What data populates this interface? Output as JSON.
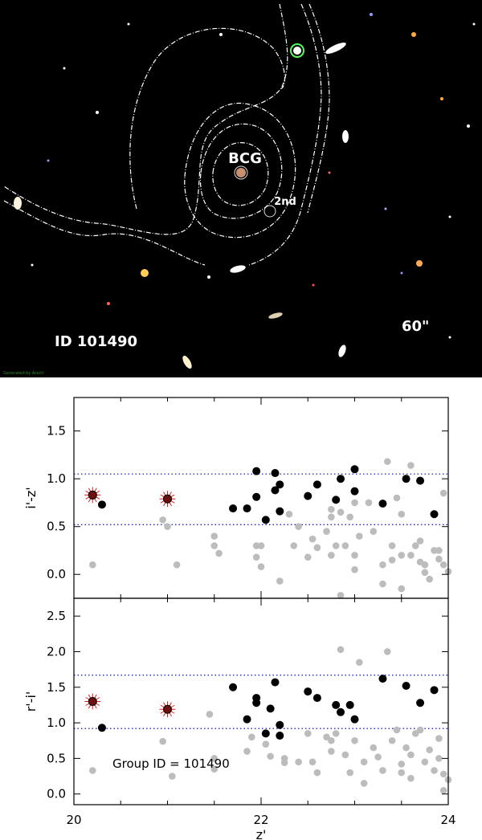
{
  "image_panel": {
    "labels": {
      "bcg": "BCG",
      "second": "2nd",
      "id": "ID 101490",
      "scale": "60\""
    },
    "credit": "Generated by Acsclr"
  },
  "chart_data": [
    {
      "type": "scatter",
      "panel": "top",
      "xlabel": "z'",
      "ylabel": "i'-z'",
      "xlim": [
        20,
        24
      ],
      "ylim": [
        -0.25,
        1.85
      ],
      "yticks": [
        "0.0",
        "0.5",
        "1.0",
        "1.5"
      ],
      "hlines": [
        1.05,
        0.52
      ],
      "members": [
        [
          21.7,
          0.69
        ],
        [
          21.85,
          0.69
        ],
        [
          21.95,
          1.08
        ],
        [
          21.95,
          0.81
        ],
        [
          22.05,
          0.57
        ],
        [
          22.15,
          1.06
        ],
        [
          22.15,
          0.88
        ],
        [
          22.2,
          0.94
        ],
        [
          22.2,
          0.66
        ],
        [
          22.5,
          0.82
        ],
        [
          22.6,
          0.94
        ],
        [
          22.8,
          0.78
        ],
        [
          22.85,
          1.0
        ],
        [
          23.0,
          1.1
        ],
        [
          23.0,
          0.87
        ],
        [
          23.3,
          0.74
        ],
        [
          23.55,
          1.0
        ],
        [
          23.7,
          0.98
        ],
        [
          23.85,
          0.63
        ],
        [
          20.3,
          0.73
        ]
      ],
      "bcg_candidates": [
        [
          20.2,
          0.83
        ],
        [
          21.0,
          0.79
        ]
      ],
      "field": [
        [
          20.2,
          0.1
        ],
        [
          20.95,
          0.57
        ],
        [
          21.0,
          0.5
        ],
        [
          21.1,
          0.1
        ],
        [
          21.5,
          0.4
        ],
        [
          21.5,
          0.3
        ],
        [
          21.55,
          0.22
        ],
        [
          21.95,
          0.3
        ],
        [
          21.95,
          0.18
        ],
        [
          22.0,
          0.3
        ],
        [
          22.0,
          0.08
        ],
        [
          22.2,
          -0.07
        ],
        [
          22.3,
          0.63
        ],
        [
          22.35,
          0.3
        ],
        [
          22.4,
          0.5
        ],
        [
          22.5,
          0.18
        ],
        [
          22.55,
          0.37
        ],
        [
          22.6,
          0.28
        ],
        [
          22.7,
          0.45
        ],
        [
          22.75,
          0.68
        ],
        [
          22.75,
          0.6
        ],
        [
          22.75,
          0.2
        ],
        [
          22.8,
          0.3
        ],
        [
          22.85,
          -0.22
        ],
        [
          22.85,
          0.65
        ],
        [
          22.9,
          0.3
        ],
        [
          22.95,
          0.6
        ],
        [
          23.0,
          0.75
        ],
        [
          23.0,
          0.05
        ],
        [
          23.05,
          0.4
        ],
        [
          23.15,
          0.75
        ],
        [
          23.2,
          0.45
        ],
        [
          23.3,
          0.1
        ],
        [
          23.3,
          -0.1
        ],
        [
          23.35,
          1.18
        ],
        [
          23.4,
          0.3
        ],
        [
          23.4,
          0.15
        ],
        [
          23.45,
          0.8
        ],
        [
          23.5,
          0.63
        ],
        [
          23.5,
          -0.15
        ],
        [
          23.6,
          1.14
        ],
        [
          23.6,
          0.2
        ],
        [
          23.65,
          0.3
        ],
        [
          23.7,
          0.13
        ],
        [
          23.75,
          0.02
        ],
        [
          23.75,
          0.1
        ],
        [
          23.8,
          -0.05
        ],
        [
          23.85,
          0.25
        ],
        [
          23.9,
          0.25
        ],
        [
          23.9,
          0.16
        ],
        [
          23.95,
          0.85
        ],
        [
          23.95,
          0.1
        ],
        [
          24.0,
          0.03
        ],
        [
          23.0,
          0.2
        ],
        [
          23.5,
          0.2
        ],
        [
          23.7,
          0.35
        ]
      ]
    },
    {
      "type": "scatter",
      "panel": "bottom",
      "xlabel": "z'",
      "ylabel": "r'-i'",
      "xlim": [
        20,
        24
      ],
      "ylim": [
        -0.15,
        2.75
      ],
      "xticks": [
        "20",
        "22",
        "24"
      ],
      "yticks": [
        "0.0",
        "0.5",
        "1.0",
        "1.5",
        "2.0",
        "2.5"
      ],
      "hlines": [
        1.67,
        0.92
      ],
      "annotation": "Group ID =  101490",
      "members": [
        [
          21.7,
          1.5
        ],
        [
          21.85,
          1.05
        ],
        [
          21.95,
          1.35
        ],
        [
          21.95,
          1.28
        ],
        [
          22.05,
          0.85
        ],
        [
          22.1,
          1.2
        ],
        [
          22.15,
          1.57
        ],
        [
          22.2,
          0.97
        ],
        [
          22.2,
          0.82
        ],
        [
          22.5,
          1.44
        ],
        [
          22.6,
          1.35
        ],
        [
          22.8,
          1.25
        ],
        [
          22.85,
          1.15
        ],
        [
          22.95,
          1.25
        ],
        [
          23.0,
          1.05
        ],
        [
          23.3,
          1.62
        ],
        [
          23.55,
          1.52
        ],
        [
          23.7,
          1.28
        ],
        [
          23.85,
          1.46
        ],
        [
          20.3,
          0.93
        ]
      ],
      "bcg_candidates": [
        [
          20.2,
          1.3
        ],
        [
          21.0,
          1.19
        ]
      ],
      "field": [
        [
          20.2,
          0.33
        ],
        [
          20.95,
          0.74
        ],
        [
          21.05,
          0.25
        ],
        [
          21.45,
          1.12
        ],
        [
          21.5,
          0.5
        ],
        [
          21.5,
          0.35
        ],
        [
          21.85,
          0.6
        ],
        [
          21.9,
          0.8
        ],
        [
          22.05,
          0.7
        ],
        [
          22.1,
          0.53
        ],
        [
          22.25,
          0.5
        ],
        [
          22.25,
          0.44
        ],
        [
          22.4,
          0.45
        ],
        [
          22.5,
          0.85
        ],
        [
          22.55,
          0.45
        ],
        [
          22.6,
          0.3
        ],
        [
          22.7,
          0.8
        ],
        [
          22.75,
          0.6
        ],
        [
          22.75,
          0.75
        ],
        [
          22.8,
          0.85
        ],
        [
          22.85,
          2.03
        ],
        [
          22.9,
          0.55
        ],
        [
          22.95,
          0.3
        ],
        [
          23.0,
          0.75
        ],
        [
          23.05,
          1.85
        ],
        [
          23.1,
          0.45
        ],
        [
          23.1,
          0.15
        ],
        [
          23.2,
          0.65
        ],
        [
          23.25,
          0.52
        ],
        [
          23.3,
          0.33
        ],
        [
          23.35,
          2.0
        ],
        [
          23.45,
          0.9
        ],
        [
          23.5,
          0.42
        ],
        [
          23.5,
          0.3
        ],
        [
          23.55,
          0.65
        ],
        [
          23.6,
          0.55
        ],
        [
          23.6,
          0.22
        ],
        [
          23.65,
          0.85
        ],
        [
          23.7,
          0.9
        ],
        [
          23.75,
          0.45
        ],
        [
          23.8,
          0.62
        ],
        [
          23.85,
          0.33
        ],
        [
          23.9,
          0.78
        ],
        [
          23.9,
          0.5
        ],
        [
          23.95,
          0.28
        ],
        [
          24.0,
          0.2
        ],
        [
          23.95,
          0.05
        ],
        [
          23.4,
          0.75
        ]
      ]
    }
  ]
}
